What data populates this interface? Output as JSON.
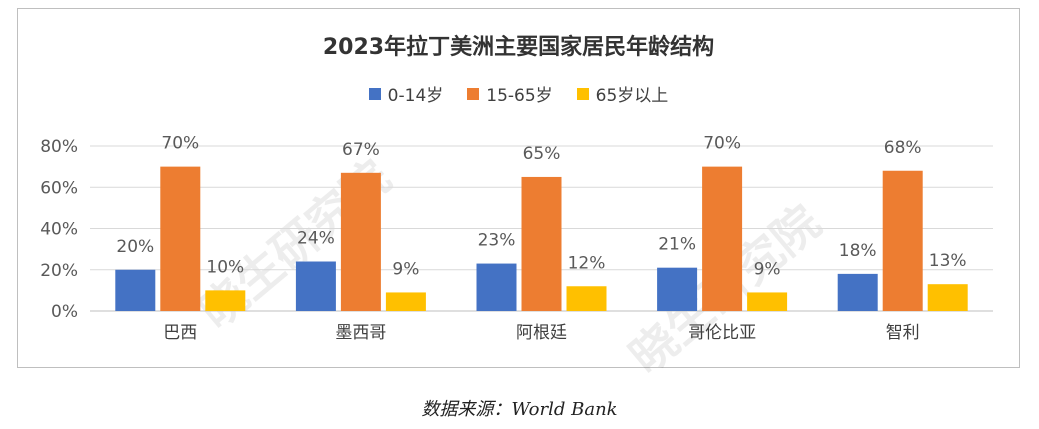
{
  "chart_data": {
    "type": "bar",
    "title": "2023年拉丁美洲主要国家居民年龄结构",
    "categories": [
      "巴西",
      "墨西哥",
      "阿根廷",
      "哥伦比亚",
      "智利"
    ],
    "series": [
      {
        "name": "0-14岁",
        "color": "#4472c4",
        "values": [
          20,
          24,
          23,
          21,
          18
        ],
        "labels": [
          "20%",
          "24%",
          "23%",
          "21%",
          "18%"
        ]
      },
      {
        "name": "15-65岁",
        "color": "#ed7d31",
        "values": [
          70,
          67,
          65,
          70,
          68
        ],
        "labels": [
          "70%",
          "67%",
          "65%",
          "70%",
          "68%"
        ]
      },
      {
        "name": "65岁以上",
        "color": "#ffc000",
        "values": [
          10,
          9,
          12,
          9,
          13
        ],
        "labels": [
          "10%",
          "9%",
          "12%",
          "9%",
          "13%"
        ]
      }
    ],
    "ylim": [
      0,
      80
    ],
    "yticks": [
      0,
      20,
      40,
      60,
      80
    ],
    "ytick_labels": [
      "0%",
      "20%",
      "40%",
      "60%",
      "80%"
    ],
    "grid": true,
    "legend": "top-center"
  },
  "watermark": "晓生研究院",
  "source": "数据来源：World Bank"
}
